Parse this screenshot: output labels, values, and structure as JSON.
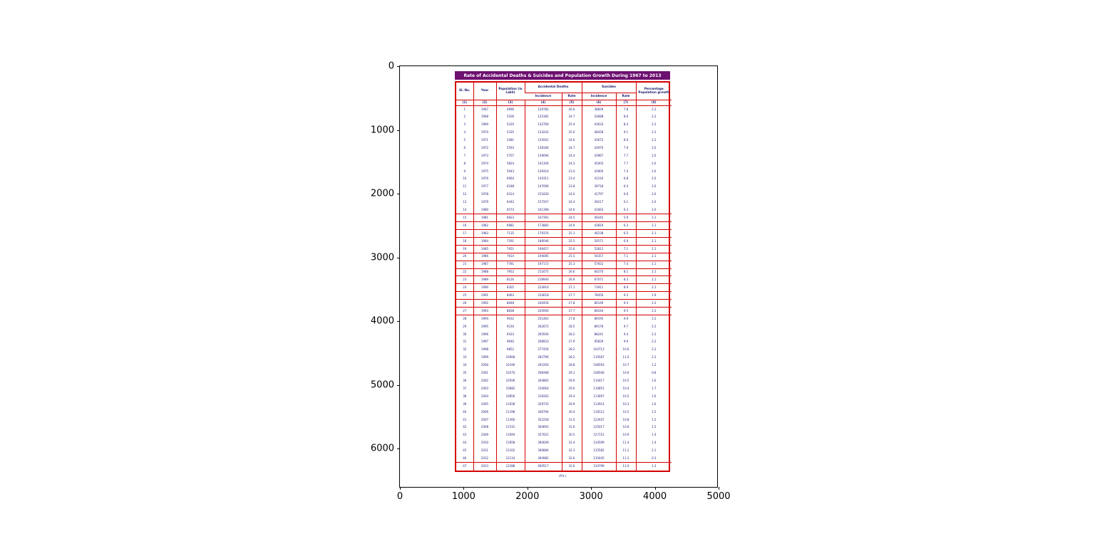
{
  "figure": {
    "x_ticks": [
      "0",
      "1000",
      "2000",
      "3000",
      "4000",
      "5000"
    ],
    "y_ticks": [
      "0",
      "1000",
      "2000",
      "3000",
      "4000",
      "5000",
      "6000"
    ]
  },
  "table": {
    "title": "Rate of Accidental Deaths & Suicides and Population Growth During 1967 to 2013",
    "header": {
      "sl_no": "Sl. No.",
      "year": "Year",
      "population": "Population (in Lakh)",
      "accidental": "Accidental Deaths",
      "suicides": "Suicides",
      "incidence": "Incidence",
      "rate": "Rate",
      "pct_growth": "Percentage Population growth"
    },
    "column_numbers": [
      "(1)",
      "(2)",
      "(3)",
      "(4)",
      "(5)",
      "(6)",
      "(7)",
      "(8)"
    ],
    "footnote": "(P.A.)"
  },
  "chart_data": {
    "type": "table",
    "title": "Rate of Accidental Deaths & Suicides and Population Growth During 1967 to 2013",
    "xlabel": "",
    "ylabel": "",
    "xlim": [
      0,
      5000
    ],
    "ylim": [
      6600,
      0
    ],
    "grid": false,
    "columns": [
      "Sl. No.",
      "Year",
      "Population (in Lakh)",
      "Accidental Deaths - Incidence",
      "Accidental Deaths - Rate",
      "Suicides - Incidence",
      "Suicides - Rate",
      "Percentage Population growth"
    ],
    "rows": [
      [
        1,
        1967,
        4996,
        129782,
        "26.0",
        38829,
        "7.8",
        "2.2"
      ],
      [
        2,
        1968,
        5106,
        125382,
        "24.7",
        43688,
        "8.6",
        "2.2"
      ],
      [
        3,
        1969,
        5220,
        132766,
        "25.4",
        43633,
        "8.4",
        "2.2"
      ],
      [
        4,
        1970,
        5335,
        133242,
        "25.0",
        48428,
        "9.1",
        "2.2"
      ],
      [
        5,
        1971,
        5481,
        135001,
        "24.6",
        43675,
        "8.0",
        "2.2"
      ],
      [
        6,
        1972,
        5593,
        138184,
        "24.7",
        43970,
        "7.9",
        "2.0"
      ],
      [
        7,
        1973,
        5707,
        139094,
        "24.4",
        43967,
        "7.7",
        "2.0"
      ],
      [
        8,
        1974,
        5824,
        141304,
        "24.3",
        45003,
        "7.7",
        "2.0"
      ],
      [
        9,
        1975,
        5943,
        139316,
        "23.4",
        43900,
        "7.4",
        "2.0"
      ],
      [
        10,
        1976,
        6064,
        141911,
        "23.4",
        41216,
        "6.8",
        "2.0"
      ],
      [
        11,
        1977,
        6188,
        147006,
        "23.8",
        39718,
        "6.4",
        "2.0"
      ],
      [
        12,
        1978,
        6314,
        151830,
        "24.0",
        41797,
        "6.6",
        "2.0"
      ],
      [
        13,
        1979,
        6442,
        157207,
        "24.4",
        39217,
        "6.1",
        "2.0"
      ],
      [
        14,
        1980,
        6574,
        161398,
        "24.6",
        41663,
        "6.3",
        "2.0"
      ],
      [
        15,
        1981,
        6833,
        167391,
        "24.5",
        40245,
        "5.9",
        "2.1"
      ],
      [
        16,
        1982,
        6982,
        173883,
        "24.9",
        43819,
        "6.3",
        "2.1"
      ],
      [
        17,
        1983,
        7135,
        179376,
        "25.1",
        46238,
        "6.5",
        "2.1"
      ],
      [
        18,
        1984,
        7291,
        186046,
        "25.5",
        50571,
        "6.9",
        "2.1"
      ],
      [
        19,
        1985,
        7451,
        190457,
        "25.6",
        52811,
        "7.1",
        "2.1"
      ],
      [
        20,
        1986,
        7614,
        194085,
        "25.5",
        54357,
        "7.1",
        "2.1"
      ],
      [
        21,
        1987,
        7781,
        197172,
        "25.3",
        57652,
        "7.4",
        "2.1"
      ],
      [
        22,
        1988,
        7952,
        211675,
        "26.6",
        64270,
        "8.1",
        "2.1"
      ],
      [
        23,
        1989,
        8126,
        218940,
        "26.9",
        67071,
        "8.3",
        "2.1"
      ],
      [
        24,
        1990,
        8305,
        224916,
        "27.1",
        73911,
        "8.9",
        "2.1"
      ],
      [
        25,
        1991,
        8463,
        234618,
        "27.7",
        78450,
        "9.3",
        "1.9"
      ],
      [
        26,
        1992,
        8648,
        240456,
        "27.8",
        80149,
        "9.3",
        "2.2"
      ],
      [
        27,
        1993,
        8838,
        245000,
        "27.7",
        84244,
        "9.5",
        "2.2"
      ],
      [
        28,
        1994,
        9032,
        251462,
        "27.8",
        89195,
        "9.9",
        "2.2"
      ],
      [
        29,
        1995,
        9230,
        262672,
        "28.5",
        89178,
        "9.7",
        "2.2"
      ],
      [
        30,
        1996,
        9433,
        265936,
        "28.2",
        88241,
        "9.4",
        "2.2"
      ],
      [
        31,
        1997,
        9640,
        268933,
        "27.9",
        95829,
        "9.9",
        "2.2"
      ],
      [
        32,
        1998,
        9852,
        277456,
        "28.2",
        104713,
        "10.6",
        "2.2"
      ],
      [
        33,
        1999,
        10068,
        283796,
        "28.2",
        110587,
        "11.0",
        "2.2"
      ],
      [
        34,
        2000,
        10190,
        293356,
        "28.8",
        108593,
        "10.7",
        "1.2"
      ],
      [
        35,
        2001,
        10270,
        298398,
        "29.1",
        108506,
        "10.6",
        "0.8"
      ],
      [
        36,
        2002,
        10506,
        304862,
        "29.0",
        110417,
        "10.5",
        "1.6"
      ],
      [
        37,
        2003,
        10682,
        310064,
        "29.0",
        110851,
        "10.4",
        "1.7"
      ],
      [
        38,
        2004,
        10856,
        319262,
        "29.4",
        113697,
        "10.5",
        "1.6"
      ],
      [
        39,
        2005,
        11028,
        329735,
        "29.9",
        113914,
        "10.3",
        "1.6"
      ],
      [
        40,
        2006,
        11198,
        340794,
        "30.4",
        118112,
        "10.5",
        "1.5"
      ],
      [
        41,
        2007,
        11366,
        352258,
        "31.0",
        122637,
        "10.8",
        "1.5"
      ],
      [
        42,
        2008,
        11531,
        364693,
        "31.6",
        125017,
        "10.8",
        "1.5"
      ],
      [
        43,
        2009,
        11694,
        357021,
        "30.5",
        127151,
        "10.9",
        "1.4"
      ],
      [
        44,
        2010,
        11858,
        384649,
        "32.4",
        134599,
        "11.4",
        "1.4"
      ],
      [
        45,
        2011,
        12102,
        390884,
        "32.3",
        135585,
        "11.2",
        "2.1"
      ],
      [
        46,
        2012,
        12134,
        394982,
        "32.6",
        135445,
        "11.2",
        "0.3"
      ],
      [
        47,
        2013,
        12288,
        400517,
        "32.6",
        134799,
        "11.0",
        "1.3"
      ]
    ]
  }
}
